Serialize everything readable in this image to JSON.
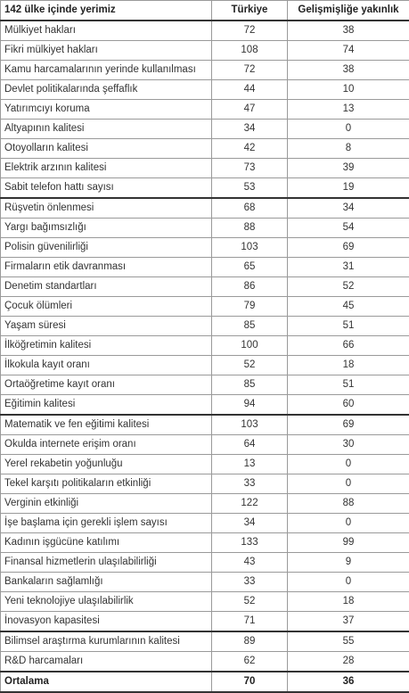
{
  "header": {
    "col1": "142 ülke içinde yerimiz",
    "col2": "Türkiye",
    "col3": "Gelişmişliğe yakınlık"
  },
  "rows": [
    {
      "label": "Mülkiyet hakları",
      "turkiye": "72",
      "yakinlik": "38"
    },
    {
      "label": "Fikri mülkiyet hakları",
      "turkiye": "108",
      "yakinlik": "74"
    },
    {
      "label": "Kamu harcamalarının yerinde kullanılması",
      "turkiye": "72",
      "yakinlik": "38"
    },
    {
      "label": "Devlet politikalarında şeffaflık",
      "turkiye": "44",
      "yakinlik": "10"
    },
    {
      "label": "Yatırımcıyı koruma",
      "turkiye": "47",
      "yakinlik": "13"
    },
    {
      "label": "Altyapının kalitesi",
      "turkiye": "34",
      "yakinlik": "0"
    },
    {
      "label": "Otoyolların kalitesi",
      "turkiye": "42",
      "yakinlik": "8"
    },
    {
      "label": "Elektrik arzının kalitesi",
      "turkiye": "73",
      "yakinlik": "39"
    },
    {
      "label": "Sabit telefon hattı sayısı",
      "turkiye": "53",
      "yakinlik": "19"
    },
    {
      "label": "Rüşvetin önlenmesi",
      "turkiye": "68",
      "yakinlik": "34"
    },
    {
      "label": "Yargı bağımsızlığı",
      "turkiye": "88",
      "yakinlik": "54"
    },
    {
      "label": "Polisin güvenilirliği",
      "turkiye": "103",
      "yakinlik": "69"
    },
    {
      "label": "Firmaların etik davranması",
      "turkiye": "65",
      "yakinlik": "31"
    },
    {
      "label": "Denetim standartları",
      "turkiye": "86",
      "yakinlik": "52"
    },
    {
      "label": "Çocuk ölümleri",
      "turkiye": "79",
      "yakinlik": "45"
    },
    {
      "label": "Yaşam süresi",
      "turkiye": "85",
      "yakinlik": "51"
    },
    {
      "label": "İlköğretimin kalitesi",
      "turkiye": "100",
      "yakinlik": "66"
    },
    {
      "label": "İlkokula kayıt oranı",
      "turkiye": "52",
      "yakinlik": "18"
    },
    {
      "label": "Ortaöğretime kayıt oranı",
      "turkiye": "85",
      "yakinlik": "51"
    },
    {
      "label": "Eğitimin kalitesi",
      "turkiye": "94",
      "yakinlik": "60"
    },
    {
      "label": "Matematik ve fen eğitimi kalitesi",
      "turkiye": "103",
      "yakinlik": "69"
    },
    {
      "label": "Okulda internete erişim oranı",
      "turkiye": "64",
      "yakinlik": "30"
    },
    {
      "label": "Yerel rekabetin yoğunluğu",
      "turkiye": "13",
      "yakinlik": "0"
    },
    {
      "label": "Tekel karşıtı politikaların etkinliği",
      "turkiye": "33",
      "yakinlik": "0"
    },
    {
      "label": "Verginin etkinliği",
      "turkiye": "122",
      "yakinlik": "88"
    },
    {
      "label": "İşe başlama için gerekli işlem sayısı",
      "turkiye": "34",
      "yakinlik": "0"
    },
    {
      "label": "Kadının işgücüne katılımı",
      "turkiye": "133",
      "yakinlik": "99"
    },
    {
      "label": "Finansal hizmetlerin ulaşılabilirliği",
      "turkiye": "43",
      "yakinlik": "9"
    },
    {
      "label": "Bankaların sağlamlığı",
      "turkiye": "33",
      "yakinlik": "0"
    },
    {
      "label": "Yeni teknolojiye ulaşılabilirlik",
      "turkiye": "52",
      "yakinlik": "18"
    },
    {
      "label": "İnovasyon kapasitesi",
      "turkiye": "71",
      "yakinlik": "37"
    },
    {
      "label": "Bilimsel araştırma kurumlarının kalitesi",
      "turkiye": "89",
      "yakinlik": "55"
    },
    {
      "label": "R&D harcamaları",
      "turkiye": "62",
      "yakinlik": "28"
    }
  ],
  "total": {
    "label": "Ortalama",
    "turkiye": "70",
    "yakinlik": "36"
  }
}
